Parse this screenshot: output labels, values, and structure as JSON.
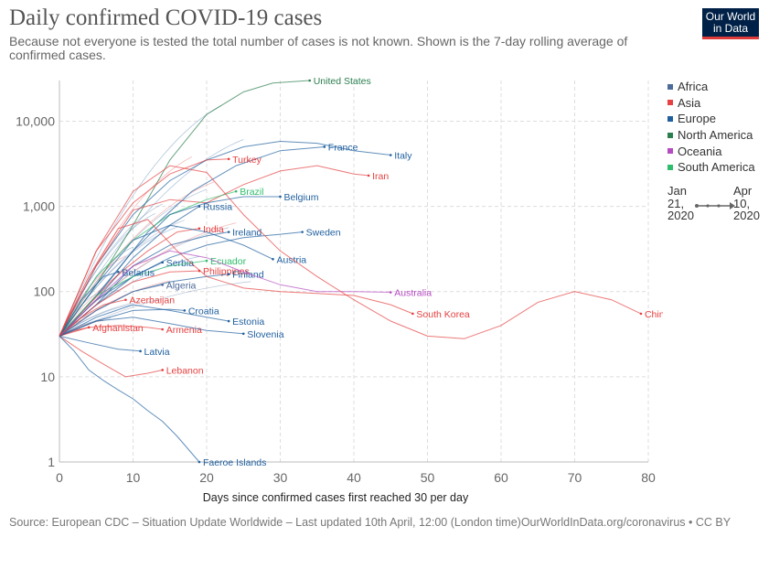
{
  "header": {
    "title": "Daily confirmed COVID-19 cases",
    "subtitle": "Because not everyone is tested the total number of cases is not known. Shown is the 7-day rolling average of confirmed cases."
  },
  "logo": {
    "line1": "Our World",
    "line2": "in Data",
    "bg_color": "#002147",
    "accent_color": "#e03b3b"
  },
  "legend": {
    "items": [
      {
        "label": "Africa",
        "color": "#4c6a9c"
      },
      {
        "label": "Asia",
        "color": "#e64040"
      },
      {
        "label": "Europe",
        "color": "#1f5f9e"
      },
      {
        "label": "North America",
        "color": "#2b7f4e"
      },
      {
        "label": "Oceania",
        "color": "#b54bc1"
      },
      {
        "label": "South America",
        "color": "#2ebd6b"
      }
    ]
  },
  "timeline": {
    "start_label": "Jan 21, 2020",
    "end_label": "Apr 10, 2020"
  },
  "source": "Source: European CDC – Situation Update Worldwide – Last updated 10th April, 12:00 (London time)OurWorldInData.org/coronavirus • CC BY",
  "chart_data": {
    "type": "line",
    "title": "Daily confirmed COVID-19 cases",
    "xlabel": "Days since confirmed cases first reached 30 per day",
    "ylabel": "",
    "x_ticks": [
      0,
      10,
      20,
      30,
      40,
      50,
      60,
      70,
      80
    ],
    "y_ticks": [
      1,
      10,
      100,
      1000,
      10000
    ],
    "y_tick_labels": [
      "1",
      "10",
      "100",
      "1,000",
      "10,000"
    ],
    "xlim": [
      0,
      80
    ],
    "ylim": [
      1,
      30000
    ],
    "y_scale": "log",
    "grid": true,
    "legend_position": "right",
    "series": [
      {
        "name": "United States",
        "region": "North America",
        "x": [
          0,
          5,
          10,
          15,
          20,
          25,
          29,
          34
        ],
        "y": [
          30,
          120,
          600,
          3500,
          12000,
          22000,
          28000,
          30000
        ]
      },
      {
        "name": "France",
        "region": "Europe",
        "x": [
          0,
          6,
          12,
          18,
          24,
          30,
          36
        ],
        "y": [
          30,
          110,
          500,
          1500,
          3000,
          4500,
          5000
        ]
      },
      {
        "name": "Italy",
        "region": "Europe",
        "x": [
          0,
          5,
          10,
          15,
          20,
          25,
          30,
          35,
          40,
          45
        ],
        "y": [
          30,
          200,
          800,
          2000,
          3500,
          5000,
          5800,
          5500,
          4500,
          4000
        ]
      },
      {
        "name": "Iran",
        "region": "Asia",
        "x": [
          0,
          5,
          10,
          15,
          20,
          25,
          30,
          35,
          40,
          42
        ],
        "y": [
          30,
          200,
          900,
          1200,
          1100,
          1800,
          2600,
          3000,
          2400,
          2300
        ]
      },
      {
        "name": "Turkey",
        "region": "Asia",
        "x": [
          0,
          5,
          10,
          15,
          20,
          23
        ],
        "y": [
          30,
          300,
          1100,
          2400,
          3500,
          3600
        ]
      },
      {
        "name": "Brazil",
        "region": "South America",
        "x": [
          0,
          5,
          10,
          15,
          20,
          24
        ],
        "y": [
          30,
          150,
          400,
          800,
          1200,
          1500
        ]
      },
      {
        "name": "Belgium",
        "region": "Europe",
        "x": [
          0,
          5,
          10,
          15,
          20,
          25,
          30
        ],
        "y": [
          30,
          90,
          300,
          800,
          1100,
          1300,
          1300
        ]
      },
      {
        "name": "Russia",
        "region": "Europe",
        "x": [
          0,
          5,
          10,
          15,
          19
        ],
        "y": [
          30,
          80,
          250,
          600,
          1000
        ]
      },
      {
        "name": "India",
        "region": "Asia",
        "x": [
          0,
          4,
          8,
          12,
          16,
          19
        ],
        "y": [
          30,
          70,
          160,
          300,
          500,
          550
        ]
      },
      {
        "name": "Ireland",
        "region": "Europe",
        "x": [
          0,
          5,
          10,
          15,
          20,
          23
        ],
        "y": [
          30,
          70,
          200,
          350,
          450,
          500
        ]
      },
      {
        "name": "Sweden",
        "region": "Europe",
        "x": [
          0,
          5,
          10,
          15,
          20,
          25,
          30,
          33
        ],
        "y": [
          30,
          70,
          150,
          250,
          350,
          430,
          470,
          500
        ]
      },
      {
        "name": "Serbia",
        "region": "Europe",
        "x": [
          0,
          5,
          10,
          14
        ],
        "y": [
          30,
          80,
          150,
          220
        ]
      },
      {
        "name": "Ecuador",
        "region": "South America",
        "x": [
          0,
          5,
          10,
          15,
          20
        ],
        "y": [
          30,
          90,
          150,
          200,
          230
        ]
      },
      {
        "name": "Austria",
        "region": "Europe",
        "x": [
          0,
          5,
          10,
          15,
          20,
          25,
          29
        ],
        "y": [
          30,
          120,
          400,
          600,
          500,
          350,
          240
        ]
      },
      {
        "name": "Belarus",
        "region": "Europe",
        "x": [
          0,
          3,
          6,
          8
        ],
        "y": [
          30,
          80,
          150,
          170
        ]
      },
      {
        "name": "Philippines",
        "region": "Asia",
        "x": [
          0,
          5,
          10,
          15,
          19
        ],
        "y": [
          30,
          70,
          130,
          170,
          175
        ]
      },
      {
        "name": "Finland",
        "region": "Europe",
        "x": [
          0,
          5,
          10,
          15,
          20,
          23
        ],
        "y": [
          30,
          60,
          100,
          130,
          150,
          160
        ]
      },
      {
        "name": "Algeria",
        "region": "Africa",
        "x": [
          0,
          5,
          10,
          14
        ],
        "y": [
          30,
          60,
          100,
          120
        ]
      },
      {
        "name": "Australia",
        "region": "Oceania",
        "x": [
          0,
          5,
          10,
          15,
          20,
          25,
          30,
          35,
          40,
          45
        ],
        "y": [
          30,
          80,
          200,
          300,
          250,
          170,
          120,
          100,
          100,
          98
        ]
      },
      {
        "name": "Azerbaijan",
        "region": "Asia",
        "x": [
          0,
          3,
          6,
          9
        ],
        "y": [
          30,
          50,
          70,
          80
        ]
      },
      {
        "name": "Croatia",
        "region": "Europe",
        "x": [
          0,
          5,
          10,
          15,
          17
        ],
        "y": [
          30,
          45,
          60,
          62,
          60
        ]
      },
      {
        "name": "Estonia",
        "region": "Europe",
        "x": [
          0,
          5,
          10,
          15,
          20,
          23
        ],
        "y": [
          30,
          50,
          70,
          60,
          50,
          45
        ]
      },
      {
        "name": "Afghanistan",
        "region": "Asia",
        "x": [
          0,
          2,
          4
        ],
        "y": [
          30,
          35,
          38
        ]
      },
      {
        "name": "Armenia",
        "region": "Asia",
        "x": [
          0,
          4,
          8,
          12,
          14
        ],
        "y": [
          30,
          38,
          40,
          38,
          36
        ]
      },
      {
        "name": "Slovenia",
        "region": "Europe",
        "x": [
          0,
          5,
          10,
          15,
          20,
          25
        ],
        "y": [
          30,
          45,
          50,
          42,
          35,
          32
        ]
      },
      {
        "name": "Latvia",
        "region": "Europe",
        "x": [
          0,
          4,
          8,
          11
        ],
        "y": [
          30,
          25,
          21,
          20
        ]
      },
      {
        "name": "South Korea",
        "region": "Asia",
        "x": [
          0,
          4,
          8,
          12,
          16,
          20,
          25,
          30,
          35,
          40,
          45,
          48
        ],
        "y": [
          30,
          150,
          550,
          700,
          300,
          150,
          110,
          100,
          95,
          90,
          70,
          55
        ]
      },
      {
        "name": "China",
        "region": "Asia",
        "x": [
          0,
          5,
          10,
          15,
          20,
          25,
          30,
          35,
          40,
          45,
          50,
          55,
          60,
          65,
          70,
          75,
          79
        ],
        "y": [
          30,
          300,
          1500,
          3000,
          2500,
          800,
          300,
          150,
          80,
          45,
          30,
          28,
          40,
          75,
          100,
          80,
          55
        ]
      },
      {
        "name": "Lebanon",
        "region": "Asia",
        "x": [
          0,
          3,
          6,
          9,
          12,
          14
        ],
        "y": [
          30,
          20,
          14,
          10,
          11,
          12
        ]
      },
      {
        "name": "Faeroe Islands",
        "region": "Europe",
        "x": [
          0,
          2,
          4,
          6,
          8,
          10,
          12,
          14,
          16,
          19
        ],
        "y": [
          30,
          20,
          12,
          9,
          7,
          5.5,
          4,
          3,
          2,
          1
        ]
      }
    ]
  }
}
